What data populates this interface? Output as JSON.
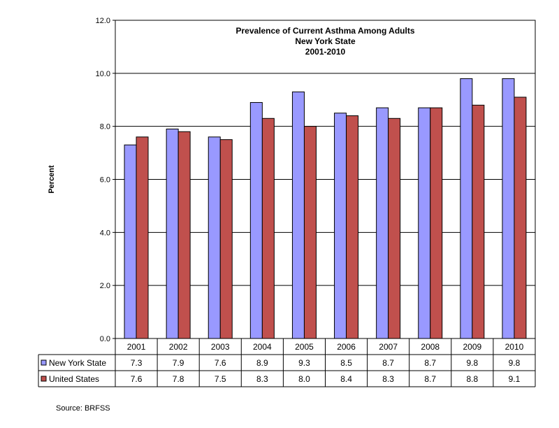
{
  "chart_data": {
    "type": "bar",
    "title": [
      "Prevalence of Current Asthma Among Adults",
      "New York State",
      "2001-2010"
    ],
    "ylabel": "Percent",
    "xlabel": "",
    "ylim": [
      0,
      12
    ],
    "yticks": [
      "0.0",
      "2.0",
      "4.0",
      "6.0",
      "8.0",
      "10.0",
      "12.0"
    ],
    "grid": true,
    "categories": [
      "2001",
      "2002",
      "2003",
      "2004",
      "2005",
      "2006",
      "2007",
      "2008",
      "2009",
      "2010"
    ],
    "series": [
      {
        "name": "New York State",
        "color": "#9999FF",
        "values": [
          7.3,
          7.9,
          7.6,
          8.9,
          9.3,
          8.5,
          8.7,
          8.7,
          9.8,
          9.8
        ],
        "labels": [
          "7.3",
          "7.9",
          "7.6",
          "8.9",
          "9.3",
          "8.5",
          "8.7",
          "8.7",
          "9.8",
          "9.8"
        ]
      },
      {
        "name": "United States",
        "color": "#C0504D",
        "values": [
          7.6,
          7.8,
          7.5,
          8.3,
          8.0,
          8.4,
          8.3,
          8.7,
          8.8,
          9.1
        ],
        "labels": [
          "7.6",
          "7.8",
          "7.5",
          "8.3",
          "8.0",
          "8.4",
          "8.3",
          "8.7",
          "8.8",
          "9.1"
        ]
      }
    ],
    "legend": "data-table"
  },
  "source": "Source: BRFSS"
}
